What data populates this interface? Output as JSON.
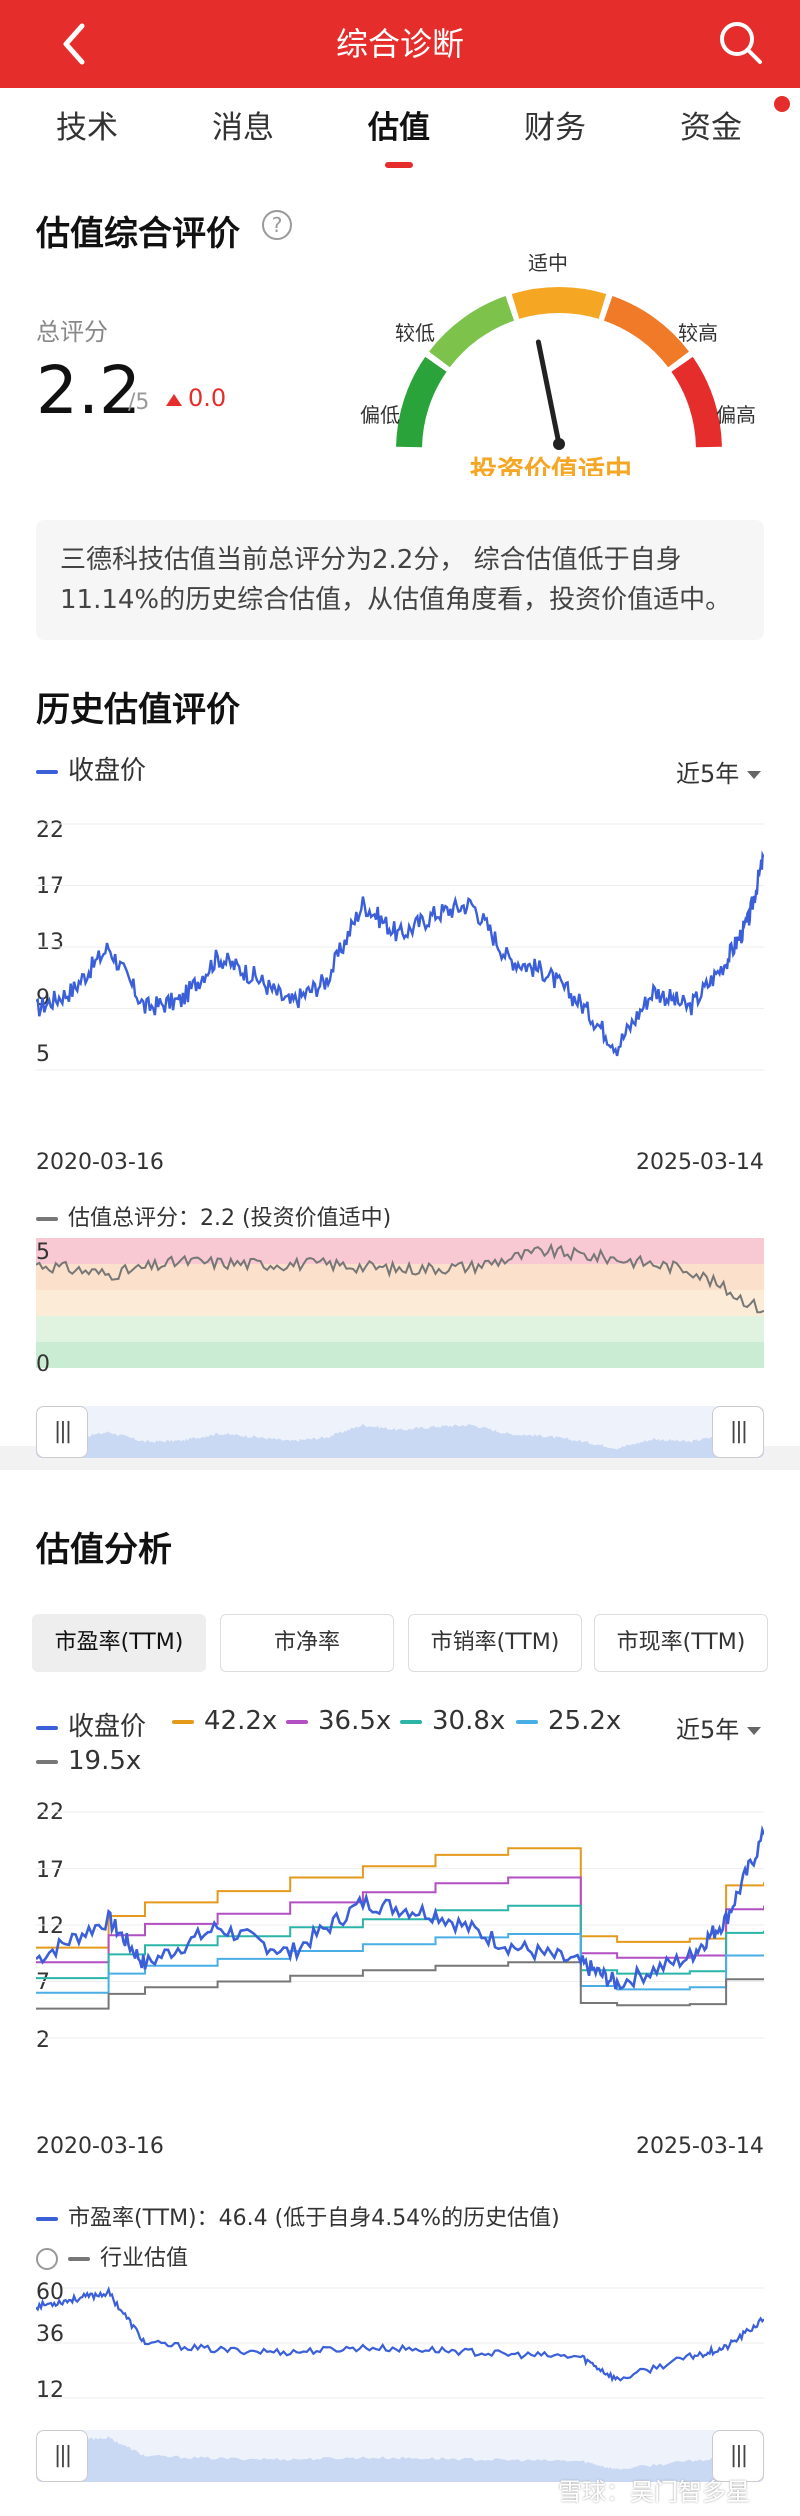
{
  "header": {
    "title": "综合诊断",
    "back_icon": "back-arrow-icon",
    "search_icon": "search-icon"
  },
  "tabs": [
    {
      "label": "技术"
    },
    {
      "label": "消息"
    },
    {
      "label": "估值"
    },
    {
      "label": "财务"
    },
    {
      "label": "资金"
    }
  ],
  "valuation": {
    "title": "估值综合评价",
    "score_label": "总评分",
    "score": "2.2",
    "score_den": "/5",
    "score_change": "0.0",
    "gauge": {
      "labels": {
        "low": "偏低",
        "lower": "较低",
        "mid": "适中",
        "higher": "较高",
        "high": "偏高"
      },
      "verdict": "投资价值适中",
      "value": 2.2,
      "max": 5,
      "colors": [
        "#2aa33a",
        "#7cc24b",
        "#f5a623",
        "#f07a28",
        "#e52d2b"
      ]
    },
    "description": "三德科技估值当前总评分为2.2分， 综合估值低于自身11.14%的历史综合估值，从估值角度看，投资价值适中。"
  },
  "history": {
    "title": "历史估值评价",
    "legend": "收盘价",
    "period": "近5年",
    "y_ticks": [
      "22",
      "17",
      "13",
      "9",
      "5"
    ],
    "start_date": "2020-03-16",
    "end_date": "2025-03-14",
    "score_legend": "估值总评分：2.2 (投资价值适中)",
    "score_ticks": [
      "5",
      "0"
    ]
  },
  "analysis": {
    "title": "估值分析",
    "subtabs": [
      {
        "label": "市盈率(TTM)"
      },
      {
        "label": "市净率"
      },
      {
        "label": "市销率(TTM)"
      },
      {
        "label": "市现率(TTM)"
      }
    ],
    "legend": [
      {
        "label": "收盘价",
        "color": "#3a5fd9"
      },
      {
        "label": "42.2x",
        "color": "#e59a1c"
      },
      {
        "label": "36.5x",
        "color": "#b24fc2"
      },
      {
        "label": "30.8x",
        "color": "#2bb5a8"
      },
      {
        "label": "25.2x",
        "color": "#4aaee6"
      },
      {
        "label": "19.5x",
        "color": "#777777"
      }
    ],
    "period": "近5年",
    "y_ticks": [
      "22",
      "17",
      "12",
      "7",
      "2"
    ],
    "start_date": "2020-03-16",
    "end_date": "2025-03-14",
    "pe_legend": "市盈率(TTM)：46.4 (低于自身4.54%的历史估值)",
    "industry_label": "行业估值",
    "pe_ticks": [
      "60",
      "36",
      "12"
    ]
  },
  "watermark": "雪球：吴门智多星",
  "chart_data": [
    {
      "type": "line",
      "title": "",
      "xlabel": "",
      "ylabel": "",
      "x_range": [
        "2020-03-16",
        "2025-03-14"
      ],
      "ylim": [
        5,
        22
      ],
      "series": [
        {
          "name": "收盘价",
          "x": [
            "2020-03-16",
            "2020-06-15",
            "2020-09-14",
            "2020-12-14",
            "2021-03-15",
            "2021-06-14",
            "2021-09-13",
            "2021-12-13",
            "2022-03-14",
            "2022-06-13",
            "2022-09-12",
            "2022-12-12",
            "2023-03-13",
            "2023-06-12",
            "2023-09-11",
            "2023-12-11",
            "2024-03-11",
            "2024-06-10",
            "2024-09-09",
            "2024-12-09",
            "2025-02-03",
            "2025-03-14"
          ],
          "values": [
            9.2,
            10.5,
            13.5,
            9.3,
            9.8,
            12.8,
            11.5,
            9.6,
            11.2,
            16.5,
            14.3,
            15.8,
            16.5,
            12.7,
            11.8,
            9.6,
            6.6,
            10.5,
            9.3,
            12.5,
            15.3,
            19.8
          ]
        }
      ]
    },
    {
      "type": "line",
      "title": "",
      "x_range": [
        "2020-03-16",
        "2025-03-14"
      ],
      "ylim": [
        2,
        22
      ],
      "series": [
        {
          "name": "收盘价",
          "x": [
            "2020-03-16",
            "2020-09-14",
            "2020-12-14",
            "2021-06-14",
            "2021-12-13",
            "2022-06-13",
            "2022-12-12",
            "2023-06-12",
            "2023-12-11",
            "2024-03-11",
            "2024-09-09",
            "2024-12-09",
            "2025-03-14"
          ],
          "values": [
            9.0,
            12.5,
            8.5,
            11.8,
            9.5,
            14.0,
            13.0,
            10.2,
            8.6,
            6.8,
            9.2,
            12.5,
            20.0
          ]
        },
        {
          "name": "42.2x",
          "x": [
            "2020-03-16",
            "2020-09-14",
            "2020-12-14",
            "2021-06-14",
            "2021-12-13",
            "2022-06-13",
            "2022-12-12",
            "2023-06-12",
            "2023-12-11",
            "2024-03-11",
            "2024-09-09",
            "2024-12-09",
            "2025-03-14"
          ],
          "values": [
            10.0,
            12.8,
            14.0,
            15.0,
            16.2,
            17.2,
            18.2,
            18.8,
            11.0,
            10.5,
            10.8,
            15.5,
            15.8
          ]
        },
        {
          "name": "36.5x",
          "x": [
            "2020-03-16",
            "2020-09-14",
            "2020-12-14",
            "2021-06-14",
            "2021-12-13",
            "2022-06-13",
            "2022-12-12",
            "2023-06-12",
            "2023-12-11",
            "2024-03-11",
            "2024-09-09",
            "2024-12-09",
            "2025-03-14"
          ],
          "values": [
            8.7,
            11.1,
            12.1,
            13.0,
            14.0,
            14.9,
            15.7,
            16.2,
            9.5,
            9.1,
            9.3,
            13.4,
            13.7
          ]
        },
        {
          "name": "30.8x",
          "x": [
            "2020-03-16",
            "2020-09-14",
            "2020-12-14",
            "2021-06-14",
            "2021-12-13",
            "2022-06-13",
            "2022-12-12",
            "2023-06-12",
            "2023-12-11",
            "2024-03-11",
            "2024-09-09",
            "2024-12-09",
            "2025-03-14"
          ],
          "values": [
            7.3,
            9.4,
            10.2,
            11.0,
            11.8,
            12.5,
            13.3,
            13.7,
            8.0,
            7.7,
            7.9,
            11.3,
            11.5
          ]
        },
        {
          "name": "25.2x",
          "x": [
            "2020-03-16",
            "2020-09-14",
            "2020-12-14",
            "2021-06-14",
            "2021-12-13",
            "2022-06-13",
            "2022-12-12",
            "2023-06-12",
            "2023-12-11",
            "2024-03-11",
            "2024-09-09",
            "2024-12-09",
            "2025-03-14"
          ],
          "values": [
            6.0,
            7.7,
            8.4,
            9.0,
            9.7,
            10.3,
            10.9,
            11.2,
            6.6,
            6.3,
            6.5,
            9.3,
            9.4
          ]
        },
        {
          "name": "19.5x",
          "x": [
            "2020-03-16",
            "2020-09-14",
            "2020-12-14",
            "2021-06-14",
            "2021-12-13",
            "2022-06-13",
            "2022-12-12",
            "2023-06-12",
            "2023-12-11",
            "2024-03-11",
            "2024-09-09",
            "2024-12-09",
            "2025-03-14"
          ],
          "values": [
            4.6,
            5.9,
            6.5,
            7.0,
            7.5,
            8.0,
            8.4,
            8.7,
            5.1,
            4.9,
            5.0,
            7.2,
            7.3
          ]
        }
      ]
    },
    {
      "type": "line",
      "title": "",
      "x_range": [
        "2020-03-16",
        "2025-03-14"
      ],
      "ylim": [
        0,
        5
      ],
      "series": [
        {
          "name": "估值总评分",
          "x": [
            "2020-03-16",
            "2020-09-14",
            "2021-03-15",
            "2021-09-13",
            "2022-03-14",
            "2022-09-12",
            "2023-03-13",
            "2023-09-11",
            "2024-03-11",
            "2024-09-09",
            "2025-03-14"
          ],
          "values": [
            4.0,
            3.6,
            4.1,
            4.0,
            4.0,
            3.8,
            3.9,
            4.5,
            4.2,
            3.8,
            2.2
          ]
        }
      ]
    },
    {
      "type": "line",
      "title": "",
      "x_range": [
        "2020-03-16",
        "2025-03-14"
      ],
      "ylim": [
        12,
        60
      ],
      "series": [
        {
          "name": "市盈率(TTM)",
          "x": [
            "2020-03-16",
            "2020-06-15",
            "2020-09-14",
            "2020-12-14",
            "2021-06-14",
            "2021-12-13",
            "2022-06-13",
            "2022-12-12",
            "2023-06-12",
            "2023-12-11",
            "2024-03-11",
            "2024-09-09",
            "2024-12-09",
            "2025-03-14"
          ],
          "values": [
            52,
            55,
            58,
            36,
            33,
            32,
            34,
            33,
            31,
            30,
            20,
            30,
            34,
            46.4
          ]
        }
      ]
    }
  ]
}
